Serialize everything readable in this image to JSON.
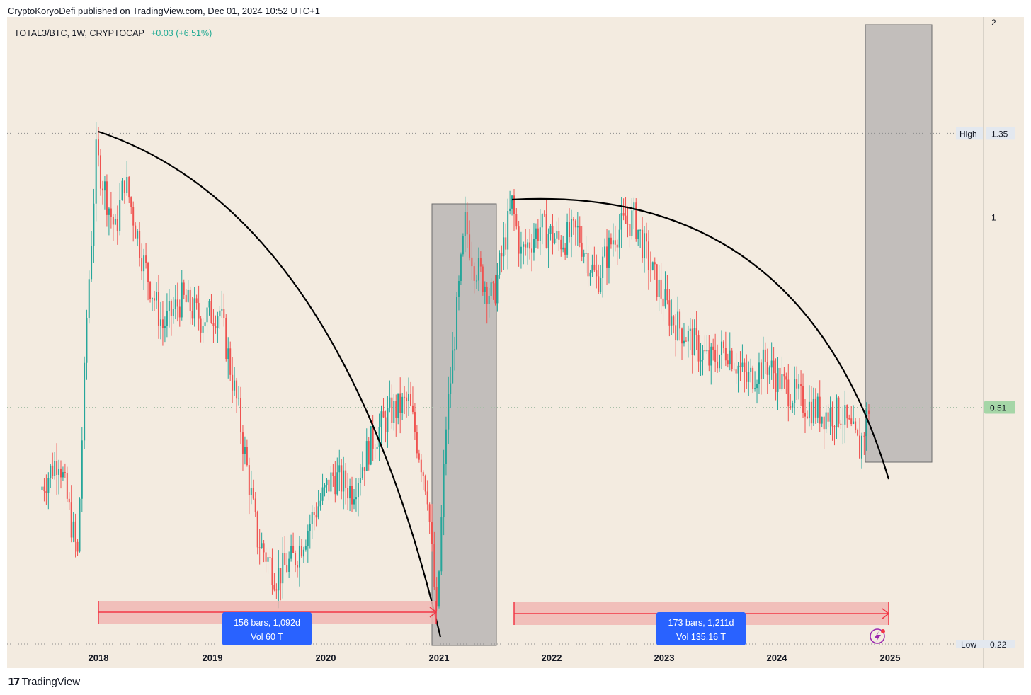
{
  "header": {
    "published_line": "CryptoKoryoDefi published on TradingView.com, Dec 01, 2024 10:52 UTC+1"
  },
  "legend": {
    "symbol": "TOTAL3/BTC, 1W, CRYPTOCAP",
    "change": "+0.03 (+6.51%)"
  },
  "footer": {
    "brand": "TradingView"
  },
  "colors": {
    "background": "#f3ebe0",
    "up": "#26a69a",
    "down": "#ef5350",
    "measure_fill": "#f0b7b3",
    "measure_line": "#f23645",
    "label_box": "#2962ff",
    "current_price_badge": "#a5d6a7"
  },
  "chart_data": {
    "type": "line",
    "series": [
      {
        "x": [
          "2017-07",
          "2017-09",
          "2017-11",
          "2017-12",
          "2018-01",
          "2018-03",
          "2018-04",
          "2018-06",
          "2018-08",
          "2018-10",
          "2018-12",
          "2019-02",
          "2019-04",
          "2019-06",
          "2019-08",
          "2019-10",
          "2019-12",
          "2020-02",
          "2020-04",
          "2020-06",
          "2020-08",
          "2020-10",
          "2020-12",
          "2021-01",
          "2021-02",
          "2021-04",
          "2021-05",
          "2021-07",
          "2021-09",
          "2021-10",
          "2021-12",
          "2022-02",
          "2022-04",
          "2022-06",
          "2022-08",
          "2022-10",
          "2022-12",
          "2023-02",
          "2023-04",
          "2023-06",
          "2023-08",
          "2023-10",
          "2023-12",
          "2024-02",
          "2024-04",
          "2024-06",
          "2024-08",
          "2024-10",
          "2024-11"
        ],
        "values": [
          0.38,
          0.43,
          0.3,
          0.7,
          1.25,
          0.95,
          1.15,
          0.85,
          0.68,
          0.75,
          0.7,
          0.72,
          0.5,
          0.32,
          0.28,
          0.3,
          0.35,
          0.4,
          0.38,
          0.45,
          0.5,
          0.52,
          0.38,
          0.24,
          0.48,
          0.98,
          0.85,
          0.75,
          1.05,
          0.88,
          0.97,
          0.92,
          0.95,
          0.8,
          0.95,
          1.0,
          0.82,
          0.7,
          0.65,
          0.6,
          0.63,
          0.56,
          0.6,
          0.55,
          0.52,
          0.5,
          0.5,
          0.44,
          0.51
        ]
      }
    ],
    "x_ticks": [
      "2018",
      "2019",
      "2020",
      "2021",
      "2022",
      "2023",
      "2024",
      "2025"
    ],
    "y_ticks": [
      "2",
      "1",
      "0.51"
    ],
    "y_scale": "log",
    "ylim": [
      0.22,
      2
    ],
    "high": {
      "label": "High",
      "value": "1.35"
    },
    "low": {
      "label": "Low",
      "value": "0.22"
    },
    "current_price": "0.51",
    "annotations": {
      "range_1": {
        "line1": "156 bars, 1,092d",
        "line2": "Vol 60 T"
      },
      "range_2": {
        "line1": "173 bars, 1,211d",
        "line2": "Vol 135.16 T"
      }
    }
  }
}
